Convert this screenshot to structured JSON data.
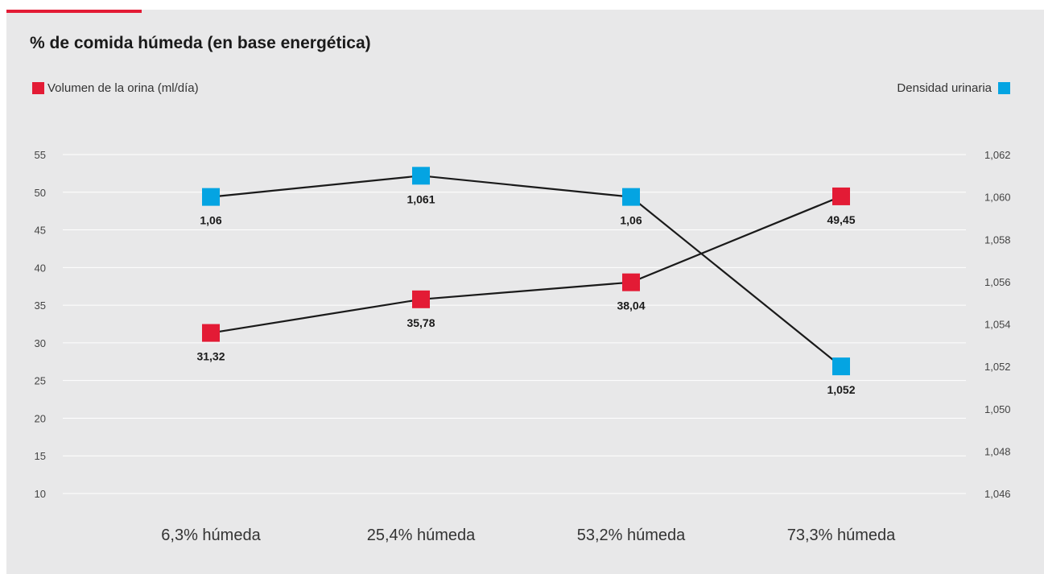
{
  "colors": {
    "accent": "#e31b35",
    "series_red": "#e31b35",
    "series_blue": "#04a4e2",
    "line": "#1a1a1a",
    "grid": "#ffffff"
  },
  "chart_data": {
    "type": "line",
    "title": "% de comida húmeda (en base energética)",
    "categories": [
      "6,3% húmeda",
      "25,4% húmeda",
      "53,2% húmeda",
      "73,3% húmeda"
    ],
    "legend": {
      "left": "Volumen de la orina (ml/día)",
      "right": "Densidad urinaria"
    },
    "grid": true,
    "y_left": {
      "min": 10,
      "max": 55,
      "ticks": [
        10,
        15,
        20,
        25,
        30,
        35,
        40,
        45,
        50,
        55
      ]
    },
    "y_right": {
      "min": 1.046,
      "max": 1.062,
      "ticks": [
        "1,046",
        "1,048",
        "1,050",
        "1,052",
        "1,054",
        "1,056",
        "1,058",
        "1,060",
        "1,062"
      ]
    },
    "series": [
      {
        "name": "Volumen de la orina (ml/día)",
        "axis": "left",
        "color": "#e31b35",
        "values": [
          31.32,
          35.78,
          38.04,
          49.45
        ],
        "labels": [
          "31,32",
          "35,78",
          "38,04",
          "49,45"
        ]
      },
      {
        "name": "Densidad urinaria",
        "axis": "right",
        "color": "#04a4e2",
        "values": [
          1.06,
          1.061,
          1.06,
          1.052
        ],
        "labels": [
          "1,06",
          "1,061",
          "1,06",
          "1,052"
        ]
      }
    ]
  }
}
